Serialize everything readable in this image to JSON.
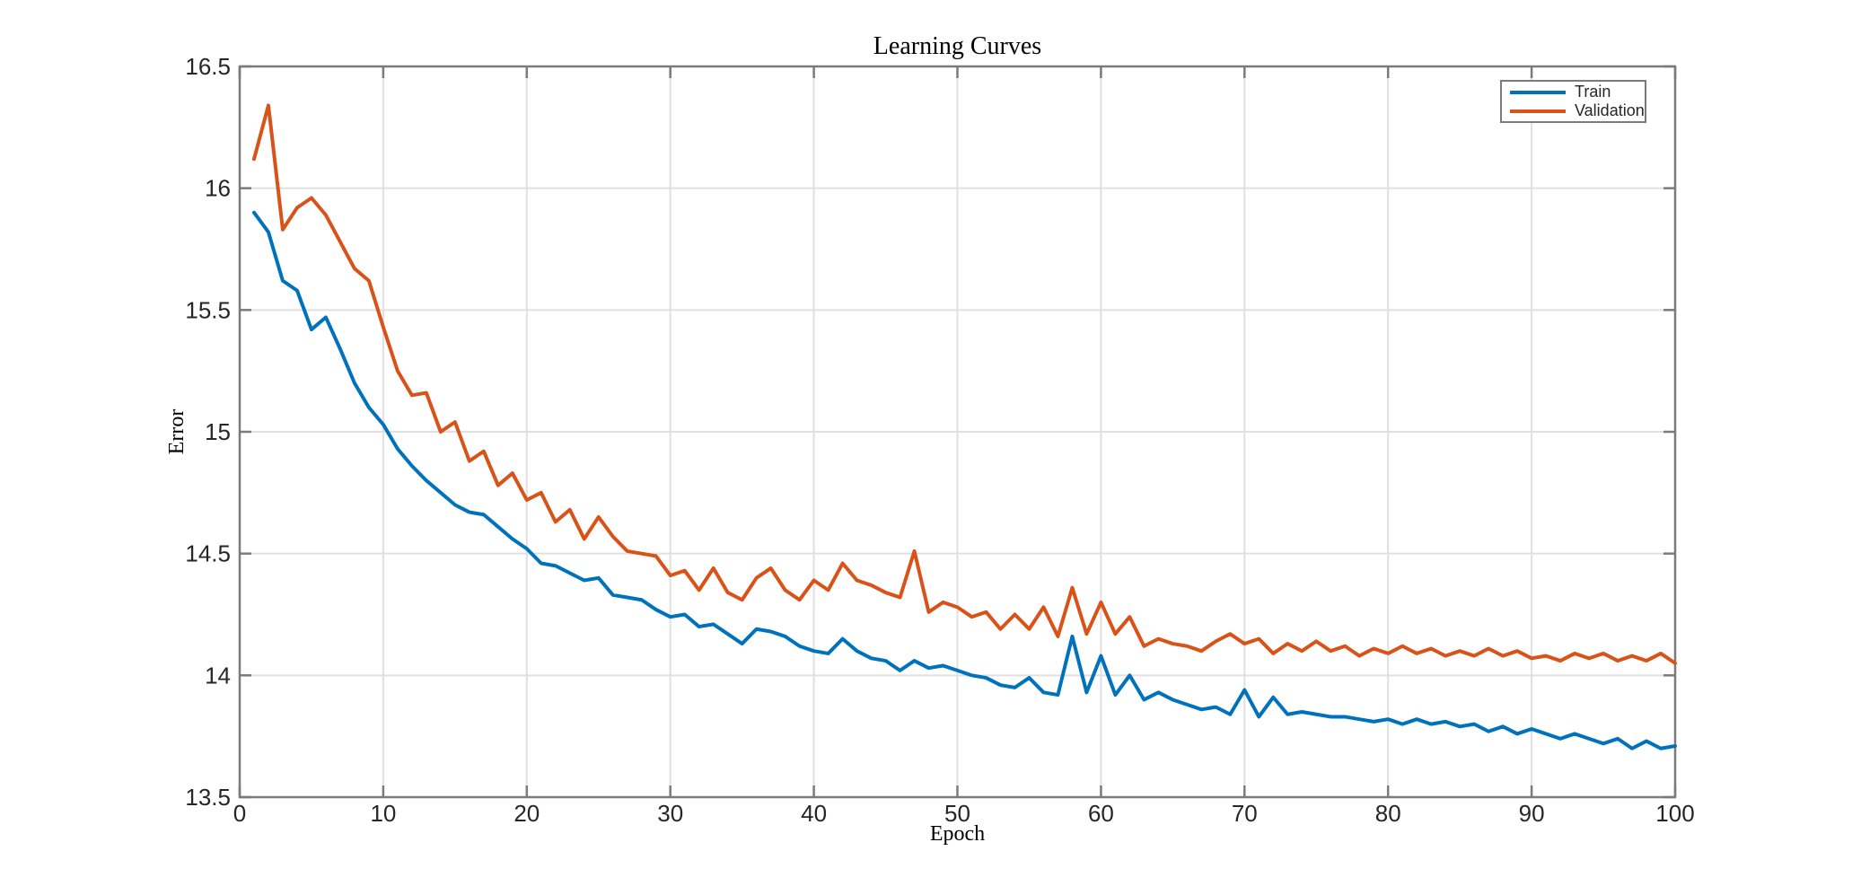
{
  "chart_data": {
    "type": "line",
    "title": "Learning Curves",
    "xlabel": "Epoch",
    "ylabel": "Error",
    "xlim": [
      0,
      100
    ],
    "ylim": [
      13.5,
      16.5
    ],
    "x_ticks": [
      0,
      10,
      20,
      30,
      40,
      50,
      60,
      70,
      80,
      90,
      100
    ],
    "x_tick_labels": [
      "0",
      "10",
      "20",
      "30",
      "40",
      "50",
      "60",
      "70",
      "80",
      "90",
      "100"
    ],
    "y_ticks": [
      13.5,
      14,
      14.5,
      15,
      15.5,
      16,
      16.5
    ],
    "y_tick_labels": [
      "13.5",
      "14",
      "14.5",
      "15",
      "15.5",
      "16",
      "16.5"
    ],
    "grid": true,
    "legend_position": "top-right",
    "x_start": 1,
    "x_step": 1,
    "colors": {
      "axis": "#7b7b7b",
      "grid": "#e0e0e0",
      "tick_label": "#262626",
      "train": "#0072BD",
      "validation": "#D95319"
    },
    "series": [
      {
        "name": "Train",
        "color": "#0072BD",
        "values": [
          15.9,
          15.82,
          15.62,
          15.58,
          15.42,
          15.47,
          15.34,
          15.2,
          15.1,
          15.03,
          14.93,
          14.86,
          14.8,
          14.75,
          14.7,
          14.67,
          14.66,
          14.61,
          14.56,
          14.52,
          14.46,
          14.45,
          14.42,
          14.39,
          14.4,
          14.33,
          14.32,
          14.31,
          14.27,
          14.24,
          14.25,
          14.2,
          14.21,
          14.17,
          14.13,
          14.19,
          14.18,
          14.16,
          14.12,
          14.1,
          14.09,
          14.15,
          14.1,
          14.07,
          14.06,
          14.02,
          14.06,
          14.03,
          14.04,
          14.02,
          14.0,
          13.99,
          13.96,
          13.95,
          13.99,
          13.93,
          13.92,
          14.16,
          13.93,
          14.08,
          13.92,
          14.0,
          13.9,
          13.93,
          13.9,
          13.88,
          13.86,
          13.87,
          13.84,
          13.94,
          13.83,
          13.91,
          13.84,
          13.85,
          13.84,
          13.83,
          13.83,
          13.82,
          13.81,
          13.82,
          13.8,
          13.82,
          13.8,
          13.81,
          13.79,
          13.8,
          13.77,
          13.79,
          13.76,
          13.78,
          13.76,
          13.74,
          13.76,
          13.74,
          13.72,
          13.74,
          13.7,
          13.73,
          13.7,
          13.71
        ]
      },
      {
        "name": "Validation",
        "color": "#D95319",
        "values": [
          16.12,
          16.34,
          15.83,
          15.92,
          15.96,
          15.89,
          15.78,
          15.67,
          15.62,
          15.43,
          15.25,
          15.15,
          15.16,
          15.0,
          15.04,
          14.88,
          14.92,
          14.78,
          14.83,
          14.72,
          14.75,
          14.63,
          14.68,
          14.56,
          14.65,
          14.57,
          14.51,
          14.5,
          14.49,
          14.41,
          14.43,
          14.35,
          14.44,
          14.34,
          14.31,
          14.4,
          14.44,
          14.35,
          14.31,
          14.39,
          14.35,
          14.46,
          14.39,
          14.37,
          14.34,
          14.32,
          14.51,
          14.26,
          14.3,
          14.28,
          14.24,
          14.26,
          14.19,
          14.25,
          14.19,
          14.28,
          14.16,
          14.36,
          14.17,
          14.3,
          14.17,
          14.24,
          14.12,
          14.15,
          14.13,
          14.12,
          14.1,
          14.14,
          14.17,
          14.13,
          14.15,
          14.09,
          14.13,
          14.1,
          14.14,
          14.1,
          14.12,
          14.08,
          14.11,
          14.09,
          14.12,
          14.09,
          14.11,
          14.08,
          14.1,
          14.08,
          14.11,
          14.08,
          14.1,
          14.07,
          14.08,
          14.06,
          14.09,
          14.07,
          14.09,
          14.06,
          14.08,
          14.06,
          14.09,
          14.05
        ]
      }
    ]
  },
  "legend": {
    "items": [
      {
        "label": "Train"
      },
      {
        "label": "Validation"
      }
    ]
  }
}
